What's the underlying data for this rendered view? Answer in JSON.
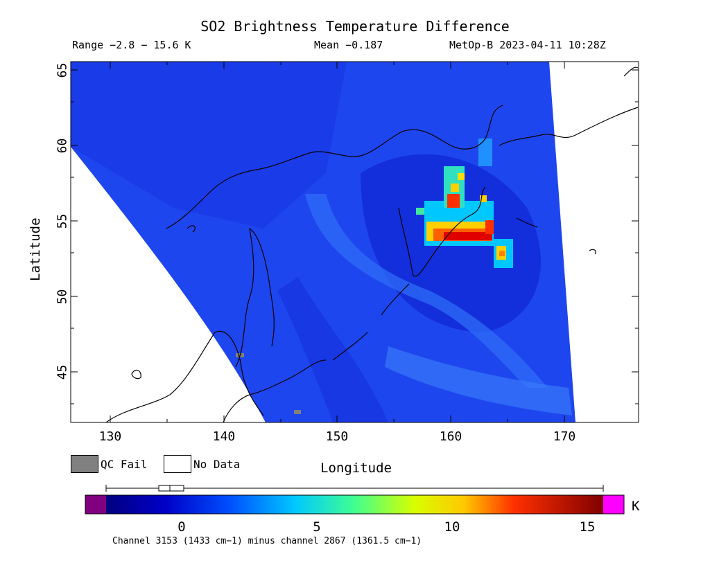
{
  "title": "SO2 Brightness Temperature Difference",
  "range_text": "Range −2.8 − 15.6 K",
  "mean_text": "Mean −0.187",
  "satellite_time": "MetOp-B 2023-04-11 10:28Z",
  "axes": {
    "xlabel": "Longitude",
    "ylabel": "Latitude",
    "x_ticks": [
      "130",
      "140",
      "150",
      "160",
      "170"
    ],
    "y_ticks": [
      "45",
      "50",
      "55",
      "60",
      "65"
    ],
    "lon_range": [
      126.5,
      176.5
    ],
    "lat_range": [
      41.5,
      65.5
    ]
  },
  "legend": {
    "qc_fail_label": "QC Fail",
    "no_data_label": "No Data",
    "qc_fail_color": "#808080",
    "no_data_color": "#ffffff"
  },
  "colorbar": {
    "ticks": [
      "0",
      "5",
      "10",
      "15"
    ],
    "tick_values": [
      0,
      5,
      10,
      15
    ],
    "range": [
      -2.8,
      15.6
    ],
    "unit": "K",
    "under_color": "#800080",
    "over_color": "#ff00ff"
  },
  "caption": "Channel 3153 (1433 cm−1) minus channel 2867 (1361.5 cm−1)",
  "colors": {
    "background_field": "#1e3cf0",
    "low": "#0a1eb4",
    "high": "#ff0000"
  }
}
